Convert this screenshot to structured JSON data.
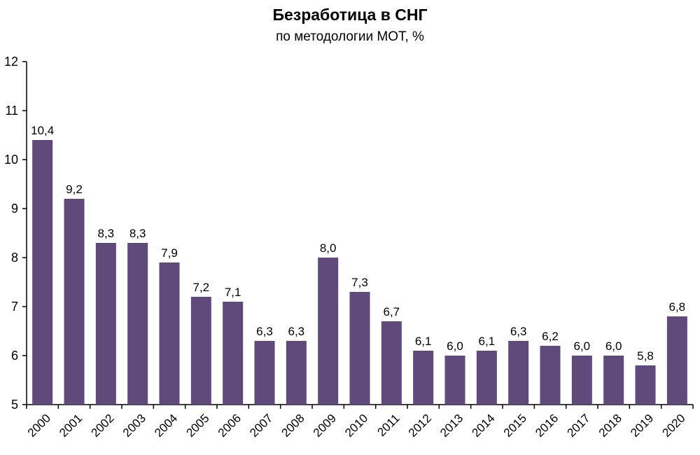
{
  "chart_data": {
    "type": "bar",
    "title": "Безработица в СНГ",
    "subtitle": "по методологии МОТ, %",
    "xlabel": "",
    "ylabel": "",
    "ylim": [
      5,
      12
    ],
    "yticks": [
      5,
      6,
      7,
      8,
      9,
      10,
      11,
      12
    ],
    "grid": false,
    "categories": [
      "2000",
      "2001",
      "2002",
      "2003",
      "2004",
      "2005",
      "2006",
      "2007",
      "2008",
      "2009",
      "2010",
      "2011",
      "2012",
      "2013",
      "2014",
      "2015",
      "2016",
      "2017",
      "2018",
      "2019",
      "2020"
    ],
    "values": [
      10.4,
      9.2,
      8.3,
      8.3,
      7.9,
      7.2,
      7.1,
      6.3,
      6.3,
      8.0,
      7.3,
      6.7,
      6.1,
      6.0,
      6.1,
      6.3,
      6.2,
      6.0,
      6.0,
      5.8,
      6.8
    ],
    "data_labels": [
      "10,4",
      "9,2",
      "8,3",
      "8,3",
      "7,9",
      "7,2",
      "7,1",
      "6,3",
      "6,3",
      "8,0",
      "7,3",
      "6,7",
      "6,1",
      "6,0",
      "6,1",
      "6,3",
      "6,2",
      "6,0",
      "6,0",
      "5,8",
      "6,8"
    ],
    "bar_color": "#604a7b",
    "axis_color": "#000000"
  }
}
